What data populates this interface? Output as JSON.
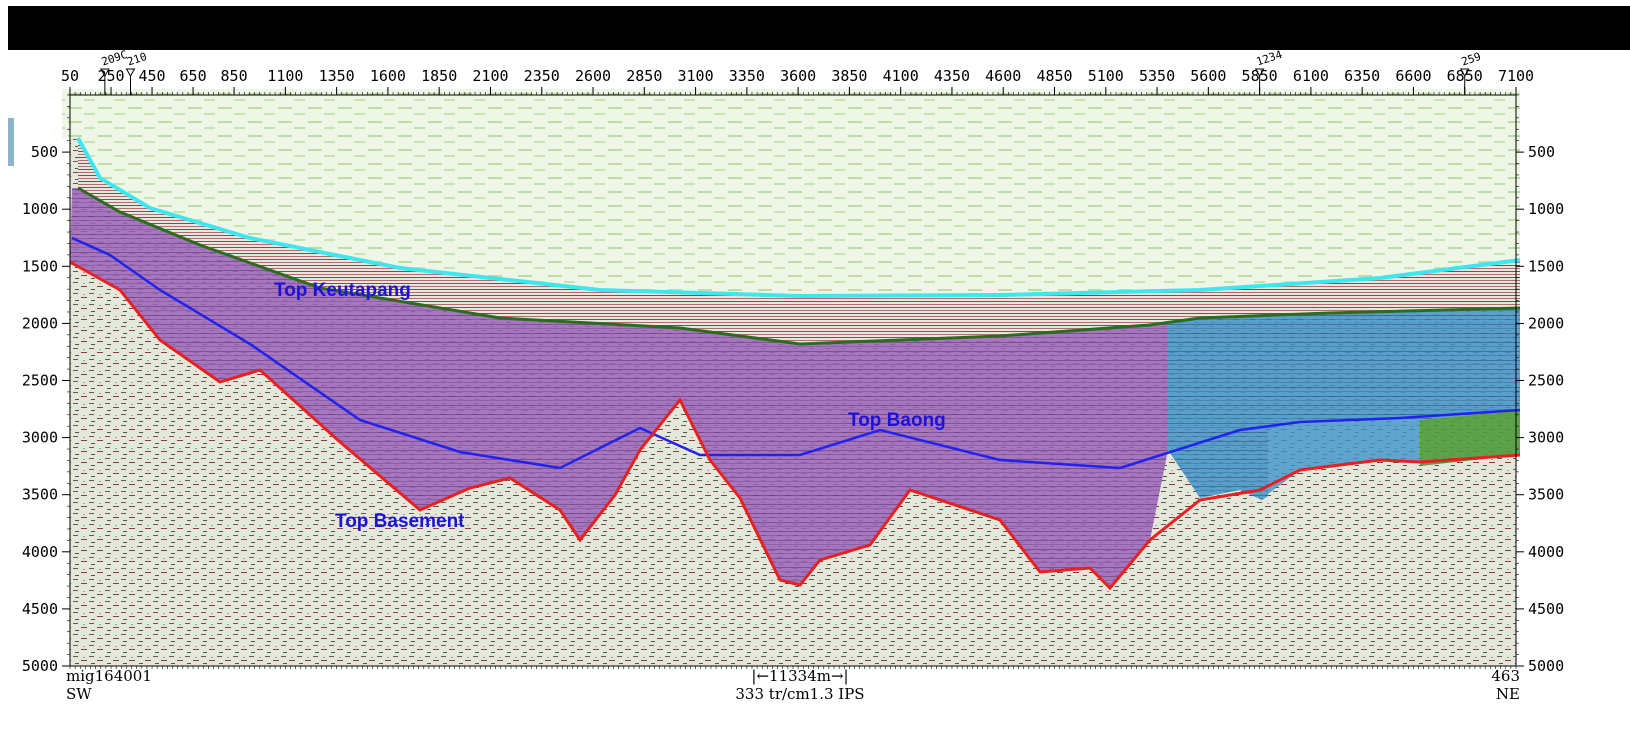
{
  "chart_data": {
    "type": "line",
    "x_ticks": [
      "50",
      "250",
      "450",
      "650",
      "850",
      "1100",
      "1350",
      "1600",
      "1850",
      "2100",
      "2350",
      "2600",
      "2850",
      "3100",
      "3350",
      "3600",
      "3850",
      "4100",
      "4350",
      "4600",
      "4850",
      "5100",
      "5350",
      "5600",
      "5850",
      "6100",
      "6350",
      "6600",
      "6850",
      "7100"
    ],
    "y_ticks": [
      "500",
      "1000",
      "1500",
      "2000",
      "2500",
      "3000",
      "3500",
      "4000",
      "4500",
      "5000"
    ],
    "y_ticks_right": [
      "500",
      "1000",
      "1500",
      "2000",
      "2500",
      "3000",
      "3500",
      "4000",
      "4500",
      "5000"
    ],
    "xlim": [
      50,
      7100
    ],
    "ylim": [
      5000,
      0
    ],
    "wells": [
      {
        "label": "209C",
        "x": 220
      },
      {
        "label": "210",
        "x": 345
      },
      {
        "label": "1234",
        "x": 5850
      },
      {
        "label": "259",
        "x": 6850
      }
    ],
    "horizons": [
      {
        "name": "Top Keutapang",
        "label": "Top Keutapang",
        "color": "#2e6b1e"
      },
      {
        "name": "Top Baong",
        "label": "Top Baong",
        "color": "#2222ee"
      },
      {
        "name": "Top Basement",
        "label": "Top Basement",
        "color": "#e82020"
      },
      {
        "name": "Seafloor",
        "color": "#3fe6ee"
      }
    ],
    "footer": {
      "left_top": "mig164001",
      "left_bottom": "SW",
      "center_top": "|←11334m→|",
      "center_bottom": "333  tr/cm1.3  IPS",
      "right_top": "463",
      "right_bottom": "NE"
    },
    "grid": false
  }
}
